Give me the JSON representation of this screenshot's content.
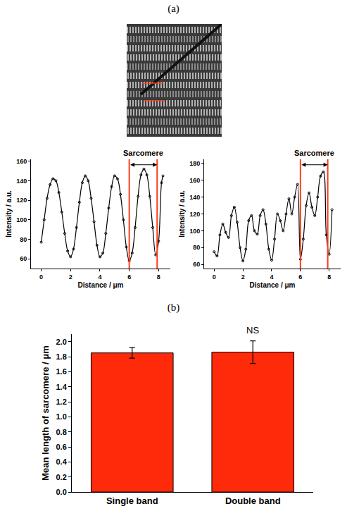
{
  "panel_labels": [
    "(a)",
    "(b)"
  ],
  "chart_data": [
    {
      "type": "line",
      "x": [
        0,
        0.2,
        0.4,
        0.6,
        0.8,
        1.0,
        1.2,
        1.4,
        1.6,
        1.8,
        2.0,
        2.2,
        2.4,
        2.6,
        2.8,
        3.0,
        3.2,
        3.4,
        3.6,
        3.8,
        4.0,
        4.2,
        4.4,
        4.6,
        4.8,
        5.0,
        5.2,
        5.4,
        5.6,
        5.8,
        6.0,
        6.2,
        6.4,
        6.6,
        6.8,
        7.0,
        7.2,
        7.4,
        7.6,
        7.8,
        8.0,
        8.2,
        8.3
      ],
      "values": [
        77,
        100,
        122,
        136,
        142,
        140,
        128,
        108,
        86,
        68,
        62,
        70,
        92,
        118,
        138,
        145,
        140,
        122,
        98,
        74,
        62,
        66,
        86,
        112,
        134,
        145,
        142,
        126,
        100,
        72,
        58,
        66,
        92,
        124,
        146,
        152,
        146,
        124,
        92,
        64,
        78,
        138,
        145
      ],
      "color": "#000000",
      "marker": "circle",
      "x_label": "Distance / μm",
      "y_label": "Intensity / a.u.",
      "xlim": [
        -0.7,
        8.8
      ],
      "xticks": [
        0,
        2,
        4,
        6,
        8
      ],
      "ylim": [
        50,
        162
      ],
      "yticks": [
        60,
        80,
        100,
        120,
        140,
        160
      ],
      "annotation": {
        "text": "Sarcomere",
        "x": [
          6.0,
          7.9
        ],
        "color": "#ff3c1e"
      }
    },
    {
      "type": "line",
      "x": [
        0,
        0.2,
        0.4,
        0.6,
        0.8,
        1.0,
        1.2,
        1.4,
        1.6,
        1.8,
        2.0,
        2.2,
        2.4,
        2.6,
        2.8,
        3.0,
        3.2,
        3.4,
        3.6,
        3.8,
        4.0,
        4.2,
        4.4,
        4.6,
        4.8,
        5.0,
        5.2,
        5.4,
        5.6,
        5.8,
        6.0,
        6.2,
        6.4,
        6.6,
        6.8,
        7.0,
        7.2,
        7.4,
        7.6,
        7.8,
        8.0,
        8.2
      ],
      "values": [
        75,
        70,
        95,
        108,
        98,
        92,
        118,
        128,
        110,
        80,
        64,
        78,
        112,
        118,
        100,
        96,
        118,
        125,
        108,
        78,
        65,
        90,
        120,
        112,
        100,
        120,
        138,
        120,
        140,
        155,
        66,
        90,
        130,
        145,
        128,
        118,
        140,
        165,
        170,
        95,
        72,
        125
      ],
      "color": "#000000",
      "marker": "circle",
      "x_label": "Distance / μm",
      "y_label": "Intensity / a.u.",
      "xlim": [
        -0.7,
        8.8
      ],
      "xticks": [
        0,
        2,
        4,
        6,
        8
      ],
      "ylim": [
        55,
        185
      ],
      "yticks": [
        60,
        80,
        100,
        120,
        140,
        160,
        180
      ],
      "annotation": {
        "text": "Sarcomere",
        "x": [
          6.0,
          7.9
        ],
        "color": "#ff3c1e"
      }
    },
    {
      "type": "bar",
      "categories": [
        "Single band",
        "Double band"
      ],
      "values": [
        1.85,
        1.86
      ],
      "errors": [
        0.07,
        0.15
      ],
      "color": "#ff2a0a",
      "y_label": "Mean length of sarcomere / μm",
      "ylim": [
        0,
        2.1
      ],
      "yticks": [
        {
          "value": 0,
          "label": "0.0"
        },
        0.2,
        0.4,
        0.6,
        0.8,
        {
          "value": 1,
          "label": "1.0"
        },
        1.2,
        1.4,
        1.6,
        1.8,
        {
          "value": 2,
          "label": "2.0"
        }
      ],
      "annotations": [
        {
          "text": "NS",
          "category": "Double band"
        }
      ]
    }
  ]
}
